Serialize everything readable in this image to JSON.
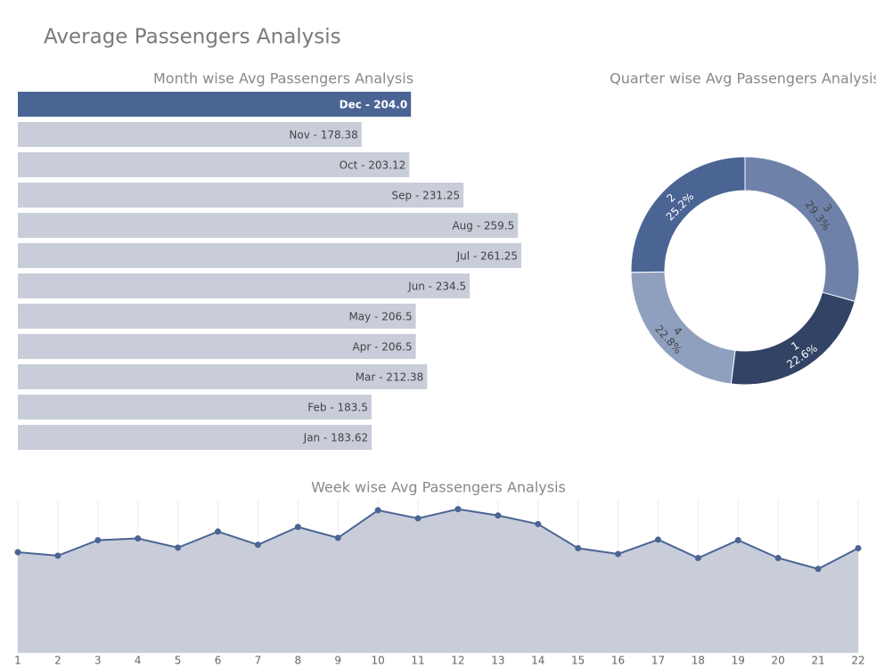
{
  "title": "Average Passengers Analysis",
  "chart_data": [
    {
      "type": "hbar",
      "title": "Month wise Avg Passengers Analysis",
      "categories": [
        "Dec",
        "Nov",
        "Oct",
        "Sep",
        "Aug",
        "Jul",
        "Jun",
        "May",
        "Apr",
        "Mar",
        "Feb",
        "Jan"
      ],
      "values": [
        204.0,
        178.38,
        203.12,
        231.25,
        259.5,
        261.25,
        234.5,
        206.5,
        206.5,
        212.38,
        183.5,
        183.62
      ],
      "value_labels": [
        "Dec - 204.0",
        "Nov - 178.38",
        "Oct - 203.12",
        "Sep - 231.25",
        "Aug - 259.5",
        "Jul - 261.25",
        "Jun - 234.5",
        "May - 206.5",
        "Apr - 206.5",
        "Mar - 212.38",
        "Feb - 183.5",
        "Jan - 183.62"
      ],
      "colors": [
        "#4a6494",
        "#c8cdd9",
        "#c8cdd9",
        "#c8cdd9",
        "#c8cdd9",
        "#c8cdd9",
        "#c8cdd9",
        "#c8cdd9",
        "#c8cdd9",
        "#c8cdd9",
        "#c8cdd9",
        "#c8cdd9"
      ]
    },
    {
      "type": "donut",
      "title": "Quarter wise Avg Passengers Analysis",
      "categories": [
        "3",
        "1",
        "4",
        "2"
      ],
      "values": [
        29.3,
        22.6,
        22.8,
        25.2
      ],
      "value_labels": [
        "29.3%",
        "22.6%",
        "22.8%",
        "25.2%"
      ],
      "colors": [
        "#6e82a9",
        "#324366",
        "#8f9fbe",
        "#4a6494"
      ]
    },
    {
      "type": "area",
      "title": "Week wise Avg Passengers Analysis",
      "x": [
        1,
        2,
        3,
        4,
        5,
        6,
        7,
        8,
        9,
        10,
        11,
        12,
        13,
        14,
        15,
        16,
        17,
        18,
        19,
        20,
        21,
        22
      ],
      "values": [
        175,
        169,
        196,
        199,
        183,
        211,
        188,
        219,
        200,
        248,
        234,
        250,
        239,
        224,
        182,
        172,
        197,
        165,
        196,
        165,
        146,
        182
      ],
      "xlim": [
        1,
        22
      ],
      "xticks": [
        1,
        2,
        3,
        4,
        5,
        6,
        7,
        8,
        9,
        10,
        11,
        12,
        13,
        14,
        15,
        16,
        17,
        18,
        19,
        20,
        21,
        22
      ],
      "ylim": [
        0,
        268
      ],
      "grid": true,
      "color": "#4a6494",
      "fill": "#c8cdd9"
    }
  ]
}
